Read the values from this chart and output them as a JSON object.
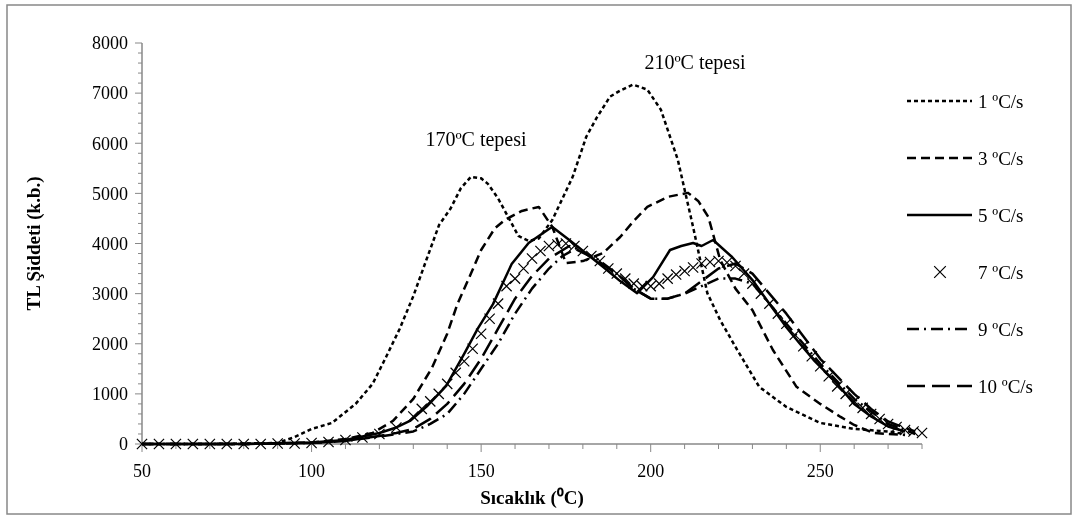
{
  "chart_data": {
    "type": "line",
    "xlabel": "Sıcaklık (⁰C)",
    "ylabel": "TL Şiddeti (k.b.)",
    "xlim": [
      50,
      280
    ],
    "ylim": [
      0,
      8000
    ],
    "xticks": [
      50,
      {
        "value": 60,
        "label": null
      },
      {
        "value": 70,
        "label": null
      },
      {
        "value": 80,
        "label": null
      },
      {
        "value": 90,
        "label": null
      },
      100,
      {
        "value": 110,
        "label": null
      },
      {
        "value": 120,
        "label": null
      },
      {
        "value": 130,
        "label": null
      },
      {
        "value": 140,
        "label": null
      },
      150,
      {
        "value": 160,
        "label": null
      },
      {
        "value": 170,
        "label": null
      },
      {
        "value": 180,
        "label": null
      },
      {
        "value": 190,
        "label": null
      },
      200,
      {
        "value": 210,
        "label": null
      },
      {
        "value": 220,
        "label": null
      },
      {
        "value": 230,
        "label": null
      },
      {
        "value": 240,
        "label": null
      },
      250,
      {
        "value": 260,
        "label": null
      },
      {
        "value": 270,
        "label": null
      },
      {
        "value": 280,
        "label": null
      }
    ],
    "yticks": [
      0,
      {
        "value": 200,
        "label": null
      },
      {
        "value": 400,
        "label": null
      },
      {
        "value": 600,
        "label": null
      },
      {
        "value": 800,
        "label": null
      },
      1000,
      {
        "value": 1200,
        "label": null
      },
      {
        "value": 1400,
        "label": null
      },
      {
        "value": 1600,
        "label": null
      },
      {
        "value": 1800,
        "label": null
      },
      2000,
      {
        "value": 2200,
        "label": null
      },
      {
        "value": 2400,
        "label": null
      },
      {
        "value": 2600,
        "label": null
      },
      {
        "value": 2800,
        "label": null
      },
      3000,
      {
        "value": 3200,
        "label": null
      },
      {
        "value": 3400,
        "label": null
      },
      {
        "value": 3600,
        "label": null
      },
      {
        "value": 3800,
        "label": null
      },
      4000,
      {
        "value": 4200,
        "label": null
      },
      {
        "value": 4400,
        "label": null
      },
      {
        "value": 4600,
        "label": null
      },
      {
        "value": 4800,
        "label": null
      },
      5000,
      {
        "value": 5200,
        "label": null
      },
      {
        "value": 5400,
        "label": null
      },
      {
        "value": 5600,
        "label": null
      },
      {
        "value": 5800,
        "label": null
      },
      6000,
      {
        "value": 6200,
        "label": null
      },
      {
        "value": 6400,
        "label": null
      },
      {
        "value": 6600,
        "label": null
      },
      {
        "value": 6800,
        "label": null
      },
      7000,
      {
        "value": 7200,
        "label": null
      },
      {
        "value": 7400,
        "label": null
      },
      {
        "value": 7600,
        "label": null
      },
      {
        "value": 7800,
        "label": null
      },
      8000
    ],
    "grid": false,
    "legend": "right",
    "annotations": [
      "170ºC tepesi",
      "210ºC tepesi"
    ],
    "series": [
      {
        "name": "1 ºC/s",
        "color": "#000000",
        "line_style": "dotted",
        "x": [
          50,
          70,
          90,
          95,
          100,
          106,
          113,
          118,
          122,
          126,
          130,
          134,
          137.6,
          141,
          144,
          147,
          150,
          152,
          155,
          157,
          161,
          164,
          167,
          171,
          174,
          177,
          181,
          184,
          188,
          191,
          194.8,
          199,
          203,
          208,
          212.5,
          216.7,
          220.5,
          225.5,
          232,
          240,
          250,
          260,
          270,
          275
        ],
        "values": [
          0,
          0,
          20,
          140,
          300,
          420,
          800,
          1200,
          1740,
          2300,
          2950,
          3700,
          4370,
          4700,
          5100,
          5330,
          5300,
          5190,
          4900,
          4650,
          4150,
          4050,
          4100,
          4470,
          4900,
          5330,
          6130,
          6500,
          6930,
          7050,
          7170,
          7070,
          6670,
          5670,
          4330,
          3010,
          2470,
          1880,
          1140,
          740,
          420,
          300,
          250,
          200
        ]
      },
      {
        "name": "3 ºC/s",
        "color": "#000000",
        "line_style": "dashed",
        "x": [
          50,
          80,
          100,
          110,
          118,
          124,
          130,
          135.5,
          140,
          143,
          147,
          150,
          154,
          157,
          162,
          167,
          171,
          175,
          180,
          186,
          191,
          195,
          199,
          205,
          211,
          214,
          217,
          220.5,
          225,
          230,
          236,
          243,
          250,
          256,
          260,
          265.6,
          270,
          275
        ],
        "values": [
          0,
          0,
          30,
          100,
          220,
          460,
          900,
          1520,
          2200,
          2790,
          3400,
          3870,
          4300,
          4470,
          4650,
          4730,
          4330,
          3610,
          3650,
          3810,
          4130,
          4450,
          4730,
          4930,
          5010,
          4850,
          4530,
          3670,
          3100,
          2670,
          1880,
          1140,
          800,
          540,
          380,
          220,
          200,
          180
        ]
      },
      {
        "name": "5 ºC/s",
        "color": "#000000",
        "line_style": "solid",
        "x": [
          50,
          80,
          100,
          110,
          120,
          125,
          129,
          134,
          139.7,
          145,
          149,
          153.5,
          159,
          164,
          170,
          171,
          176,
          181,
          186,
          191,
          196,
          200.7,
          205.7,
          209,
          212.5,
          215,
          218.4,
          224,
          230,
          235,
          240,
          244,
          248,
          255,
          260,
          265,
          270,
          275
        ],
        "values": [
          0,
          0,
          30,
          80,
          220,
          330,
          460,
          750,
          1160,
          1800,
          2300,
          2790,
          3590,
          4010,
          4290,
          4330,
          4070,
          3800,
          3530,
          3250,
          3010,
          3330,
          3870,
          3950,
          4010,
          3950,
          4070,
          3730,
          3270,
          2800,
          2330,
          2000,
          1680,
          1200,
          800,
          550,
          350,
          250
        ]
      },
      {
        "name": "7 ºC/s",
        "color": "#000000",
        "type": "scatter",
        "marker": "cross",
        "x": [
          50,
          55,
          60,
          65,
          70,
          75,
          80,
          85,
          90,
          95,
          100,
          105,
          110,
          115,
          120,
          125,
          130,
          132.5,
          135,
          137.5,
          140,
          142.5,
          145,
          147.5,
          150,
          152.5,
          155,
          157.5,
          160,
          162.5,
          165,
          167.5,
          170,
          172.5,
          175,
          177.5,
          180,
          182.5,
          185,
          187.5,
          190,
          192.5,
          195,
          197.5,
          200,
          202.5,
          205,
          207.5,
          210,
          212.5,
          215,
          217.5,
          220,
          222.5,
          225,
          227.5,
          230,
          232.5,
          235,
          237.5,
          240,
          242.5,
          245,
          247.5,
          250,
          252.5,
          255,
          257.5,
          260,
          262.5,
          265,
          267.5,
          270,
          272.5,
          275,
          277.5,
          280
        ],
        "values": [
          0,
          0,
          0,
          0,
          0,
          0,
          0,
          0,
          10,
          10,
          20,
          40,
          80,
          130,
          200,
          330,
          550,
          700,
          850,
          1000,
          1200,
          1420,
          1650,
          1900,
          2200,
          2500,
          2800,
          3150,
          3300,
          3500,
          3700,
          3850,
          3950,
          3980,
          4000,
          3950,
          3850,
          3750,
          3650,
          3500,
          3400,
          3300,
          3200,
          3150,
          3150,
          3200,
          3300,
          3380,
          3450,
          3520,
          3600,
          3630,
          3650,
          3620,
          3550,
          3400,
          3200,
          3000,
          2800,
          2600,
          2400,
          2180,
          1950,
          1750,
          1550,
          1350,
          1150,
          1000,
          850,
          720,
          600,
          500,
          400,
          340,
          280,
          250,
          220
        ]
      },
      {
        "name": "9 ºC/s",
        "color": "#000000",
        "line_style": "dashdot",
        "x": [
          50,
          80,
          100,
          110,
          120,
          125,
          130,
          135,
          140,
          145,
          150,
          155,
          160,
          165,
          170,
          174,
          178,
          184,
          190,
          195,
          200,
          205,
          210,
          215,
          220,
          225,
          230,
          235,
          240,
          245,
          250,
          255,
          260,
          265,
          270,
          275,
          278
        ],
        "values": [
          0,
          0,
          20,
          60,
          150,
          200,
          250,
          400,
          600,
          1000,
          1500,
          2000,
          2600,
          3100,
          3500,
          3750,
          3900,
          3700,
          3400,
          3100,
          2900,
          2900,
          3000,
          3150,
          3300,
          3300,
          3200,
          2800,
          2400,
          2000,
          1600,
          1250,
          900,
          650,
          400,
          280,
          200
        ]
      },
      {
        "name": "10 ºC/s",
        "color": "#000000",
        "line_style": "longdash",
        "x": [
          50,
          80,
          100,
          110,
          120,
          125,
          130,
          135,
          140,
          145,
          150,
          155,
          160,
          165,
          170,
          176,
          182,
          190,
          195,
          200,
          205,
          210,
          215,
          220,
          225,
          230,
          235,
          240,
          245,
          250,
          255,
          260,
          265,
          270,
          275,
          278
        ],
        "values": [
          0,
          0,
          20,
          60,
          160,
          220,
          300,
          500,
          800,
          1200,
          1700,
          2300,
          2900,
          3350,
          3700,
          3950,
          3750,
          3400,
          3100,
          2900,
          2900,
          3000,
          3250,
          3500,
          3600,
          3400,
          3000,
          2600,
          2150,
          1700,
          1350,
          1000,
          700,
          450,
          320,
          250
        ]
      }
    ]
  }
}
